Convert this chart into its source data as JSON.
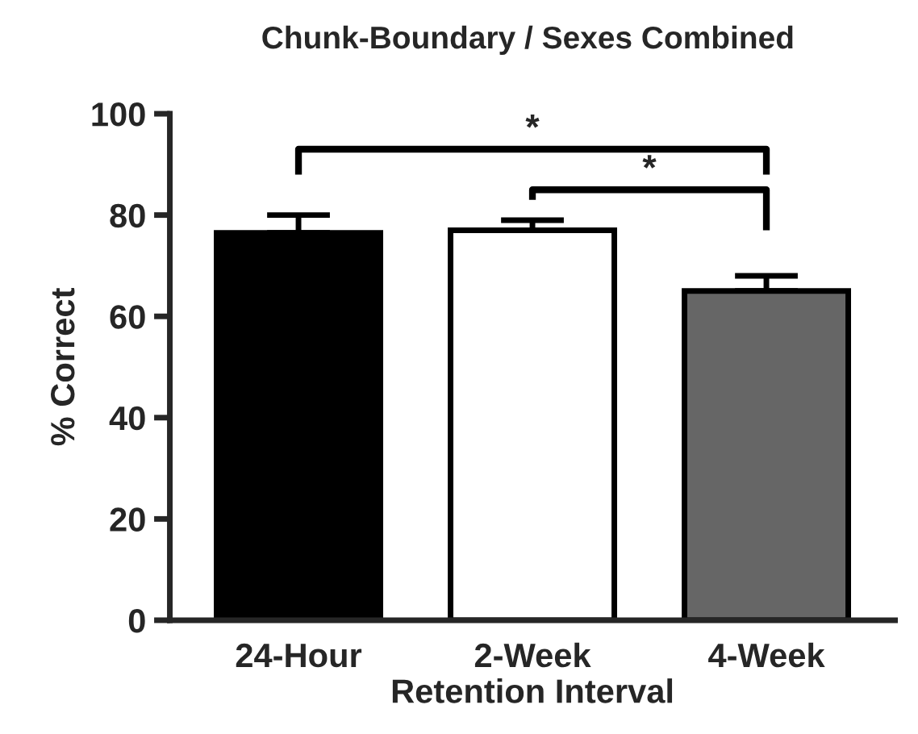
{
  "chart_data": {
    "type": "bar",
    "title": "Chunk-Boundary / Sexes Combined",
    "xlabel": "Retention Interval",
    "ylabel": "% Correct",
    "categories": [
      "24-Hour",
      "2-Week",
      "4-Week"
    ],
    "values": [
      76.5,
      77,
      65
    ],
    "colors": [
      "#000000",
      "#ffffff",
      "#666666"
    ],
    "errors": [
      [
        76.5,
        80
      ],
      [
        77,
        79
      ],
      [
        65,
        68
      ]
    ],
    "ylim": [
      0,
      100
    ],
    "yticks": [
      0,
      20,
      40,
      60,
      80,
      100
    ],
    "grid": false,
    "annotations": [
      "*",
      "*"
    ]
  }
}
